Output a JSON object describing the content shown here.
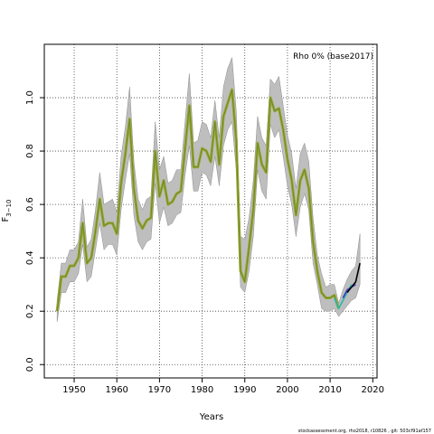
{
  "chart_data": {
    "type": "line",
    "xlabel": "Years",
    "ylabel": "F",
    "ylabel_sub": "3−10",
    "xlim": [
      1943,
      2021
    ],
    "ylim": [
      -0.05,
      1.2
    ],
    "x_ticks": [
      1950,
      1960,
      1970,
      1980,
      1990,
      2000,
      2010,
      2020
    ],
    "y_ticks": [
      0.0,
      0.2,
      0.4,
      0.6,
      0.8,
      1.0
    ],
    "y_tick_labels": [
      "0.0",
      "0.2",
      "0.4",
      "0.6",
      "0.8",
      "1.0"
    ],
    "grid": true,
    "annotation": "Rho 0% (base2017)",
    "footer": "stockassessment.org, rho2018, r10826 , git: 503cf91af157",
    "colors": {
      "band": "#bebebe",
      "band_edge": "#8c8c8c",
      "main_line": "#9aa830",
      "main_line_inner": "#6b8a2e",
      "retro_teal": "#2ab7a9",
      "retro_blue": "#3b3bbd",
      "retro_black": "#000000"
    },
    "series": [
      {
        "kind": "confidence-band",
        "x": [
          1946,
          1947,
          1948,
          1949,
          1950,
          1951,
          1952,
          1953,
          1954,
          1955,
          1956,
          1957,
          1958,
          1959,
          1960,
          1961,
          1962,
          1963,
          1964,
          1965,
          1966,
          1967,
          1968,
          1969,
          1970,
          1971,
          1972,
          1973,
          1974,
          1975,
          1976,
          1977,
          1978,
          1979,
          1980,
          1981,
          1982,
          1983,
          1984,
          1985,
          1986,
          1987,
          1988,
          1989,
          1990,
          1991,
          1992,
          1993,
          1994,
          1995,
          1996,
          1997,
          1998,
          1999,
          2000,
          2001,
          2002,
          2003,
          2004,
          2005,
          2006,
          2007,
          2008,
          2009,
          2010,
          2011,
          2012,
          2013,
          2014,
          2015,
          2016,
          2017
        ],
        "upper": [
          0.24,
          0.38,
          0.38,
          0.43,
          0.43,
          0.46,
          0.62,
          0.44,
          0.47,
          0.58,
          0.72,
          0.6,
          0.61,
          0.62,
          0.57,
          0.78,
          0.89,
          1.04,
          0.76,
          0.62,
          0.58,
          0.62,
          0.63,
          0.91,
          0.73,
          0.78,
          0.68,
          0.69,
          0.73,
          0.73,
          0.91,
          1.09,
          0.83,
          0.84,
          0.91,
          0.9,
          0.85,
          0.99,
          0.85,
          1.04,
          1.11,
          1.15,
          0.95,
          0.48,
          0.47,
          0.55,
          0.69,
          0.93,
          0.85,
          0.82,
          1.07,
          1.05,
          1.08,
          0.97,
          0.86,
          0.79,
          0.66,
          0.79,
          0.83,
          0.76,
          0.55,
          0.41,
          0.34,
          0.29,
          0.3,
          0.3,
          0.23,
          0.28,
          0.32,
          0.35,
          0.37,
          0.49
        ],
        "lower": [
          0.16,
          0.27,
          0.27,
          0.31,
          0.31,
          0.34,
          0.45,
          0.31,
          0.33,
          0.43,
          0.53,
          0.43,
          0.45,
          0.45,
          0.41,
          0.58,
          0.69,
          0.79,
          0.56,
          0.46,
          0.43,
          0.46,
          0.47,
          0.68,
          0.53,
          0.59,
          0.52,
          0.53,
          0.56,
          0.57,
          0.71,
          0.82,
          0.65,
          0.65,
          0.72,
          0.71,
          0.67,
          0.78,
          0.67,
          0.82,
          0.88,
          0.91,
          0.73,
          0.29,
          0.27,
          0.35,
          0.48,
          0.73,
          0.65,
          0.62,
          0.9,
          0.85,
          0.88,
          0.78,
          0.67,
          0.6,
          0.48,
          0.59,
          0.64,
          0.58,
          0.38,
          0.3,
          0.21,
          0.2,
          0.2,
          0.21,
          0.18,
          0.2,
          0.22,
          0.24,
          0.25,
          0.3
        ]
      },
      {
        "kind": "line",
        "color": "main_line",
        "x": [
          1946,
          1947,
          1948,
          1949,
          1950,
          1951,
          1952,
          1953,
          1954,
          1955,
          1956,
          1957,
          1958,
          1959,
          1960,
          1961,
          1962,
          1963,
          1964,
          1965,
          1966,
          1967,
          1968,
          1969,
          1970,
          1971,
          1972,
          1973,
          1974,
          1975,
          1976,
          1977,
          1978,
          1979,
          1980,
          1981,
          1982,
          1983,
          1984,
          1985,
          1986,
          1987,
          1988,
          1989,
          1990,
          1991,
          1992,
          1993,
          1994,
          1995,
          1996,
          1997,
          1998,
          1999,
          2000,
          2001,
          2002,
          2003,
          2004,
          2005,
          2006,
          2007,
          2008,
          2009,
          2010,
          2011,
          2012
        ],
        "values": [
          0.2,
          0.33,
          0.33,
          0.37,
          0.37,
          0.4,
          0.53,
          0.38,
          0.4,
          0.5,
          0.62,
          0.52,
          0.53,
          0.53,
          0.49,
          0.68,
          0.79,
          0.92,
          0.66,
          0.54,
          0.51,
          0.54,
          0.55,
          0.8,
          0.63,
          0.69,
          0.6,
          0.61,
          0.64,
          0.65,
          0.81,
          0.97,
          0.74,
          0.74,
          0.81,
          0.8,
          0.76,
          0.91,
          0.75,
          0.93,
          0.98,
          1.03,
          0.84,
          0.35,
          0.31,
          0.44,
          0.58,
          0.83,
          0.75,
          0.72,
          1.0,
          0.95,
          0.96,
          0.88,
          0.77,
          0.69,
          0.56,
          0.69,
          0.73,
          0.66,
          0.46,
          0.35,
          0.27,
          0.25,
          0.25,
          0.26,
          0.21
        ]
      },
      {
        "kind": "line",
        "color": "retro_teal",
        "x": [
          2011,
          2012,
          2013,
          2014,
          2015
        ],
        "values": [
          0.25,
          0.21,
          0.24,
          0.27,
          0.3
        ]
      },
      {
        "kind": "line",
        "color": "retro_blue",
        "x": [
          2013,
          2014,
          2015,
          2016
        ],
        "values": [
          0.25,
          0.28,
          0.29,
          0.3
        ]
      },
      {
        "kind": "line",
        "color": "retro_black",
        "x": [
          2014,
          2015,
          2016,
          2017
        ],
        "values": [
          0.27,
          0.29,
          0.31,
          0.38
        ]
      }
    ]
  }
}
